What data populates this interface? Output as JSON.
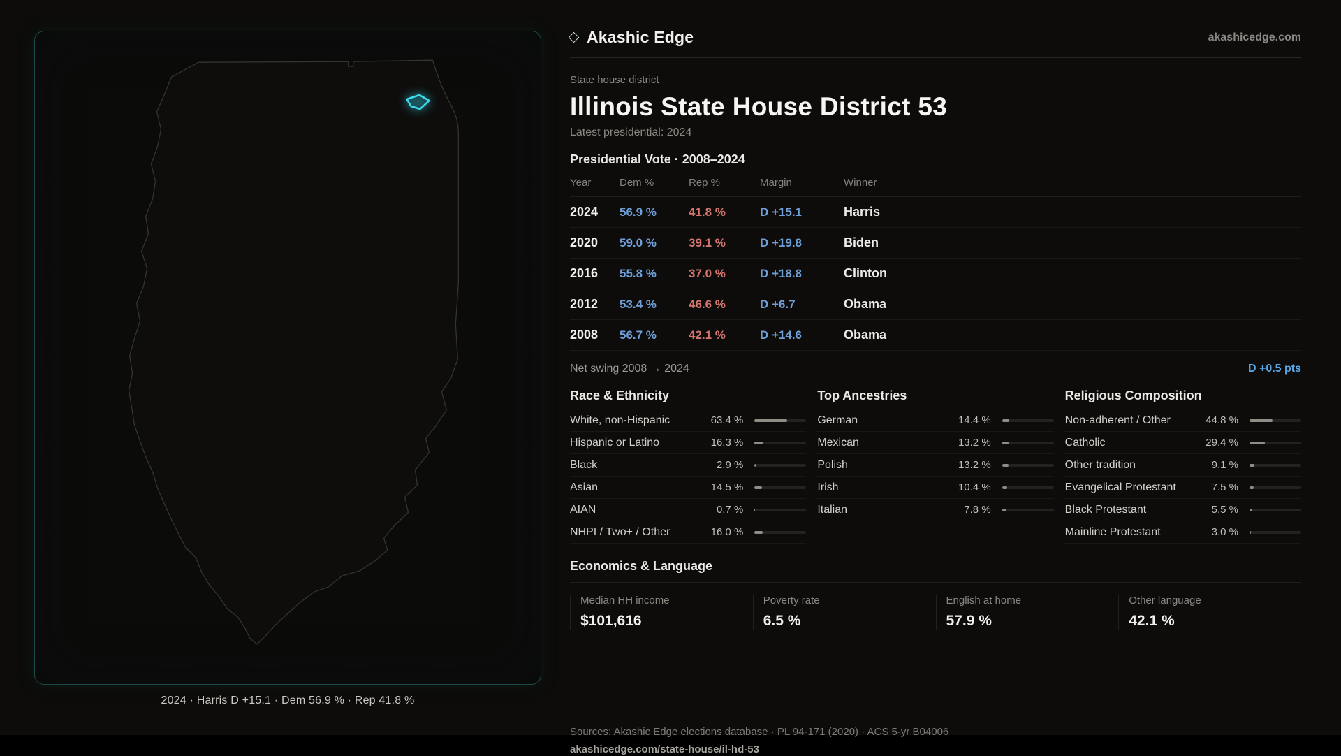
{
  "colors": {
    "dem": "#6f9fd9",
    "rep": "#d4756e",
    "accent": "#3adcee",
    "swing": "#57a8e8"
  },
  "brand": {
    "name": "Akashic Edge",
    "domain": "akashicedge.com"
  },
  "header": {
    "kicker": "State house district",
    "title": "Illinois State House District 53",
    "subtitle": "Latest presidential: 2024"
  },
  "map": {
    "caption": "2024 · Harris D +15.1 · Dem 56.9 % · Rep 41.8 %"
  },
  "vote_table": {
    "title": "Presidential Vote · 2008–2024",
    "columns": [
      "Year",
      "Dem %",
      "Rep %",
      "Margin",
      "Winner"
    ],
    "rows": [
      {
        "year": "2024",
        "dem": "56.9 %",
        "rep": "41.8 %",
        "margin": "D +15.1",
        "winner": "Harris"
      },
      {
        "year": "2020",
        "dem": "59.0 %",
        "rep": "39.1 %",
        "margin": "D +19.8",
        "winner": "Biden"
      },
      {
        "year": "2016",
        "dem": "55.8 %",
        "rep": "37.0 %",
        "margin": "D +18.8",
        "winner": "Clinton"
      },
      {
        "year": "2012",
        "dem": "53.4 %",
        "rep": "46.6 %",
        "margin": "D +6.7",
        "winner": "Obama"
      },
      {
        "year": "2008",
        "dem": "56.7 %",
        "rep": "42.1 %",
        "margin": "D +14.6",
        "winner": "Obama"
      }
    ],
    "net_swing_label": "Net swing 2008 → 2024",
    "net_swing_value": "D +0.5 pts"
  },
  "demographics": {
    "race": {
      "title": "Race & Ethnicity",
      "rows": [
        {
          "label": "White, non-Hispanic",
          "value": "63.4 %",
          "pct": 63.4
        },
        {
          "label": "Hispanic or Latino",
          "value": "16.3 %",
          "pct": 16.3
        },
        {
          "label": "Black",
          "value": "2.9 %",
          "pct": 2.9
        },
        {
          "label": "Asian",
          "value": "14.5 %",
          "pct": 14.5
        },
        {
          "label": "AIAN",
          "value": "0.7 %",
          "pct": 0.7
        },
        {
          "label": "NHPI / Two+ / Other",
          "value": "16.0 %",
          "pct": 16.0
        }
      ]
    },
    "ancestries": {
      "title": "Top Ancestries",
      "rows": [
        {
          "label": "German",
          "value": "14.4 %",
          "pct": 14.4
        },
        {
          "label": "Mexican",
          "value": "13.2 %",
          "pct": 13.2
        },
        {
          "label": "Polish",
          "value": "13.2 %",
          "pct": 13.2
        },
        {
          "label": "Irish",
          "value": "10.4 %",
          "pct": 10.4
        },
        {
          "label": "Italian",
          "value": "7.8 %",
          "pct": 7.8
        }
      ]
    },
    "religion": {
      "title": "Religious Composition",
      "rows": [
        {
          "label": "Non-adherent / Other",
          "value": "44.8 %",
          "pct": 44.8
        },
        {
          "label": "Catholic",
          "value": "29.4 %",
          "pct": 29.4
        },
        {
          "label": "Other tradition",
          "value": "9.1 %",
          "pct": 9.1
        },
        {
          "label": "Evangelical Protestant",
          "value": "7.5 %",
          "pct": 7.5
        },
        {
          "label": "Black Protestant",
          "value": "5.5 %",
          "pct": 5.5
        },
        {
          "label": "Mainline Protestant",
          "value": "3.0 %",
          "pct": 3.0
        }
      ]
    }
  },
  "economics": {
    "title": "Economics & Language",
    "stats": [
      {
        "label": "Median HH income",
        "value": "$101,616"
      },
      {
        "label": "Poverty rate",
        "value": "6.5 %"
      },
      {
        "label": "English at home",
        "value": "57.9 %"
      },
      {
        "label": "Other language",
        "value": "42.1 %"
      }
    ]
  },
  "footer": {
    "sources": "Sources: Akashic Edge elections database · PL 94-171 (2020) · ACS 5-yr B04006",
    "permalink": "akashicedge.com/state-house/il-hd-53"
  }
}
